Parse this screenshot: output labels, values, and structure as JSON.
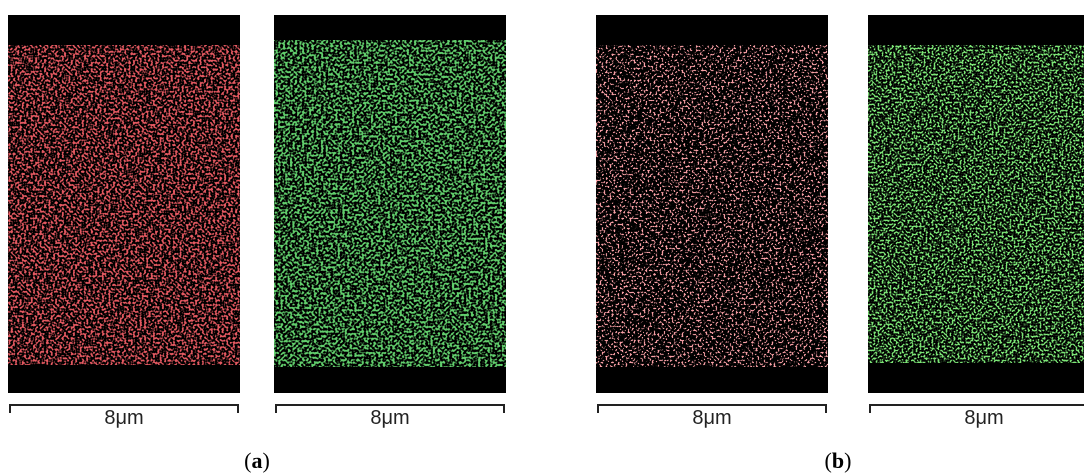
{
  "panels": [
    {
      "scale_label": "8μm"
    },
    {
      "scale_label": "8μm"
    },
    {
      "scale_label": "8μm"
    },
    {
      "scale_label": "8μm"
    }
  ],
  "captions": [
    {
      "parts": [
        "(",
        "a",
        ")"
      ]
    },
    {
      "parts": [
        "(",
        "b",
        ")"
      ]
    }
  ]
}
